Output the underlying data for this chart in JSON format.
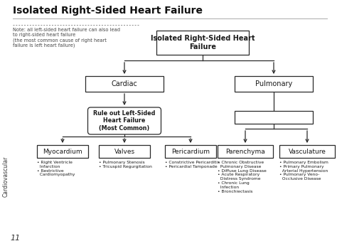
{
  "title": "Isolated Right-Sided Heart Failure",
  "bg_color": "#ffffff",
  "note_text": "Note: all left-sided heart failure can also lead\nto right-sided heart failure\n(the most common cause of right heart\nfailure is left heart failure)",
  "sidebar_text": "Cardiovascular",
  "page_num": "11",
  "root_label": "Isolated Right-Sided Heart\nFailure",
  "level2": [
    "Cardiac",
    "Pulmonary"
  ],
  "level3_cardiac": "Rule out Left-Sided\nHeart Failure\n(Most Common)",
  "level4": [
    "Myocardium",
    "Valves",
    "Pericardium",
    "Parenchyma",
    "Vasculature"
  ],
  "bullets": {
    "Myocardium": "• Right Ventricle\n  Infarction\n• Restrictive\n  Cardiomyopathy",
    "Valves": "• Pulmonary Stenosis\n• Tricuspid Regurgitation",
    "Pericardium": "• Constrictive Pericarditis\n• Pericardial Tamponade",
    "Parenchyma": "• Chronic Obstructive\n  Pulmonary Disease\n• Diffuse Lung Disease\n• Acute Respiratory\n  Distress Syndrome\n• Chronic Lung\n  Infection\n• Bronchiectasis",
    "Vasculature": "• Pulmonary Embolism\n• Primary Pulmonary\n  Arterial Hypertension\n• Pulmonary Veno-\n  Occlusive Disease"
  },
  "box_color": "#ffffff",
  "box_edge_color": "#2a2a2a",
  "text_color": "#1a1a1a",
  "line_color": "#2a2a2a",
  "title_color": "#111111",
  "dotted_color": "#888888"
}
